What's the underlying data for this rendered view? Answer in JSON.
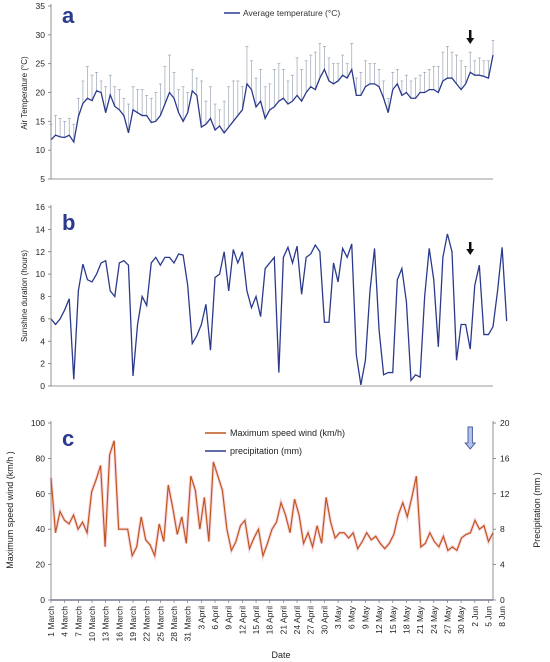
{
  "chart_data": [
    {
      "type": "line",
      "panel_label": "a",
      "title": "",
      "xlabel": "",
      "ylabel": "Air Temperature (°C)",
      "ylim": [
        5,
        35
      ],
      "yticks": [
        5,
        10,
        15,
        20,
        25,
        30,
        35
      ],
      "legend": {
        "position": "top-center"
      },
      "has_error_bars": true,
      "arrow_at_day": 92,
      "series": [
        {
          "name": "Average temperature (°C)",
          "color": "#2b3a8c",
          "values": [
            11.8,
            12.6,
            12.3,
            12.2,
            12.6,
            11.4,
            15.8,
            18.1,
            19.0,
            18.6,
            20.3,
            20.0,
            16.5,
            19.6,
            17.6,
            17.0,
            16.0,
            13.0,
            17.0,
            16.5,
            16.0,
            16.0,
            14.8,
            15.0,
            16.0,
            18.0,
            20.0,
            19.0,
            16.5,
            15.0,
            16.5,
            20.3,
            19.5,
            14.0,
            14.5,
            15.5,
            13.5,
            14.2,
            13.0,
            14.0,
            15.0,
            16.0,
            17.0,
            21.5,
            20.5,
            17.5,
            18.5,
            15.5,
            17.0,
            17.5,
            18.5,
            19.0,
            18.0,
            18.5,
            19.5,
            18.5,
            20.0,
            21.0,
            20.5,
            22.5,
            24.0,
            22.0,
            21.5,
            22.0,
            23.0,
            22.5,
            24.0,
            19.5,
            19.5,
            21.0,
            21.5,
            21.5,
            21.0,
            19.0,
            16.5,
            20.5,
            21.5,
            19.5,
            20.0,
            19.0,
            19.0,
            20.0,
            20.0,
            20.5,
            20.5,
            20.0,
            22.0,
            22.5,
            22.5,
            21.5,
            20.5,
            21.5,
            23.5,
            23.0,
            23.0,
            22.8,
            22.5,
            26.5
          ],
          "error_top": [
            14.5,
            16.0,
            15.5,
            15.0,
            15.5,
            14.5,
            19.0,
            22.0,
            24.5,
            23.0,
            23.5,
            22.0,
            21.0,
            23.0,
            21.0,
            20.5,
            19.0,
            18.0,
            21.0,
            20.5,
            20.5,
            19.5,
            19.0,
            20.0,
            21.5,
            24.5,
            26.5,
            23.5,
            20.5,
            21.0,
            20.0,
            24.0,
            22.5,
            22.0,
            18.5,
            21.0,
            18.0,
            17.0,
            18.5,
            21.0,
            22.0,
            22.0,
            21.0,
            28.0,
            25.5,
            22.5,
            24.0,
            21.0,
            21.5,
            24.0,
            25.0,
            24.0,
            22.0,
            23.0,
            26.0,
            24.0,
            25.5,
            26.5,
            27.0,
            28.5,
            28.0,
            26.0,
            25.0,
            25.0,
            26.5,
            25.0,
            28.5,
            22.5,
            23.5,
            25.5,
            25.0,
            25.0,
            24.0,
            22.0,
            19.0,
            23.5,
            24.0,
            22.0,
            23.0,
            22.0,
            22.5,
            23.0,
            23.5,
            24.0,
            24.5,
            24.5,
            27.0,
            28.0,
            27.0,
            26.5,
            25.5,
            24.5,
            27.0,
            25.5,
            26.0,
            25.5,
            25.5,
            29.0
          ]
        }
      ]
    },
    {
      "type": "line",
      "panel_label": "b",
      "title": "",
      "xlabel": "",
      "ylabel": "Sunshine duration (hours)",
      "ylim": [
        0,
        16
      ],
      "yticks": [
        0,
        2,
        4,
        6,
        8,
        10,
        12,
        14,
        16
      ],
      "arrow_at_day": 92,
      "series": [
        {
          "name": "",
          "color": "#2b3a8c",
          "values": [
            6.0,
            5.5,
            6.0,
            6.8,
            7.8,
            0.6,
            8.5,
            10.9,
            9.5,
            9.3,
            10.0,
            11.0,
            11.2,
            8.5,
            8.0,
            11.0,
            11.2,
            10.8,
            0.9,
            5.5,
            8.0,
            7.2,
            11.0,
            11.5,
            10.8,
            11.5,
            11.5,
            11.0,
            11.8,
            11.7,
            9.0,
            3.8,
            4.5,
            5.5,
            7.3,
            3.2,
            9.7,
            10.0,
            12.0,
            8.5,
            12.2,
            11.0,
            12.0,
            8.5,
            7.0,
            8.0,
            6.2,
            10.5,
            11.0,
            11.5,
            1.2,
            11.5,
            12.4,
            11.0,
            12.5,
            8.2,
            11.5,
            11.8,
            12.6,
            12.0,
            5.7,
            5.7,
            11.0,
            9.3,
            12.3,
            11.5,
            12.7,
            2.8,
            0.1,
            2.3,
            8.5,
            12.3,
            5.0,
            1.0,
            1.2,
            1.2,
            9.5,
            10.5,
            7.5,
            0.5,
            1.0,
            0.8,
            8.0,
            12.3,
            9.5,
            3.5,
            11.5,
            13.6,
            12.0,
            2.3,
            5.5,
            5.5,
            3.3,
            9.0,
            10.8,
            4.6,
            4.6,
            5.3,
            8.5,
            12.4,
            5.8
          ]
        }
      ]
    },
    {
      "type": "line",
      "panel_label": "c",
      "title": "",
      "xlabel": "Date",
      "ylabel": "Maximum speed wind (km/h )",
      "ylabel_right": "Precipitation (mm )",
      "ylim": [
        0,
        100
      ],
      "yticks": [
        0,
        20,
        40,
        60,
        80,
        100
      ],
      "ylim_right": [
        0,
        20
      ],
      "yticks_right": [
        0,
        4,
        8,
        12,
        16,
        20
      ],
      "legend": {
        "position": "top-center"
      },
      "arrow_at_day": 92,
      "x_tick_labels": [
        "1 March",
        "4 March",
        "7 March",
        "10 March",
        "13 March",
        "16 March",
        "19 March",
        "22 March",
        "25 March",
        "28 March",
        "31 March",
        "3 April",
        "6 April",
        "9 April",
        "12 April",
        "15 April",
        "18 April",
        "21 April",
        "24 April",
        "27 April",
        "30 April",
        "3 May",
        "6 May",
        "9 May",
        "12 May",
        "15 May",
        "18 May",
        "21 May",
        "24 May",
        "27 May",
        "30 May",
        "2 Jun",
        "5 Jun",
        "8 Jun"
      ],
      "series": [
        {
          "name": "Maximum speed wind (km/h)",
          "axis": "left",
          "color": "#c0561f",
          "values": [
            69,
            38,
            50,
            45,
            43,
            48,
            40,
            44,
            38,
            61,
            68,
            76,
            30,
            82,
            90,
            40,
            40,
            40,
            25,
            30,
            47,
            34,
            31,
            25,
            43,
            33,
            65,
            52,
            37,
            47,
            32,
            70,
            62,
            40,
            58,
            33,
            78,
            70,
            62,
            40,
            28,
            33,
            42,
            45,
            29,
            35,
            40,
            25,
            32,
            40,
            44,
            55,
            48,
            38,
            57,
            48,
            32,
            38,
            30,
            42,
            32,
            58,
            44,
            35,
            38,
            38,
            35,
            38,
            29,
            33,
            38,
            34,
            36,
            32,
            29,
            32,
            37,
            48,
            55,
            47,
            58,
            70,
            30,
            32,
            38,
            33,
            30,
            36,
            28,
            30,
            28,
            35,
            37,
            38,
            45,
            40,
            42,
            33,
            38
          ]
        },
        {
          "name": "precipitation (mm)",
          "axis": "right",
          "color": "#2b3a8c",
          "values": [
            0,
            0,
            0,
            0,
            0,
            0,
            0,
            0,
            0,
            0,
            0,
            0,
            0,
            0,
            0,
            0,
            0,
            0,
            0,
            0,
            0,
            0,
            0,
            0,
            0,
            0,
            0,
            0,
            0,
            0,
            0,
            0,
            0,
            0,
            0,
            0,
            0,
            0,
            0,
            0,
            0,
            0,
            0,
            0,
            0,
            0,
            0,
            0,
            0,
            0,
            0,
            0,
            0,
            0,
            0,
            0,
            0,
            0,
            0,
            0,
            0,
            0,
            0,
            0,
            0,
            0,
            0,
            0,
            0,
            0,
            0,
            0,
            0,
            0,
            0,
            0,
            0,
            0,
            0,
            0,
            0,
            0,
            0,
            0,
            0,
            0,
            0,
            0,
            0,
            0,
            0,
            0,
            0,
            0,
            0,
            0,
            0,
            0,
            0
          ]
        }
      ]
    }
  ]
}
